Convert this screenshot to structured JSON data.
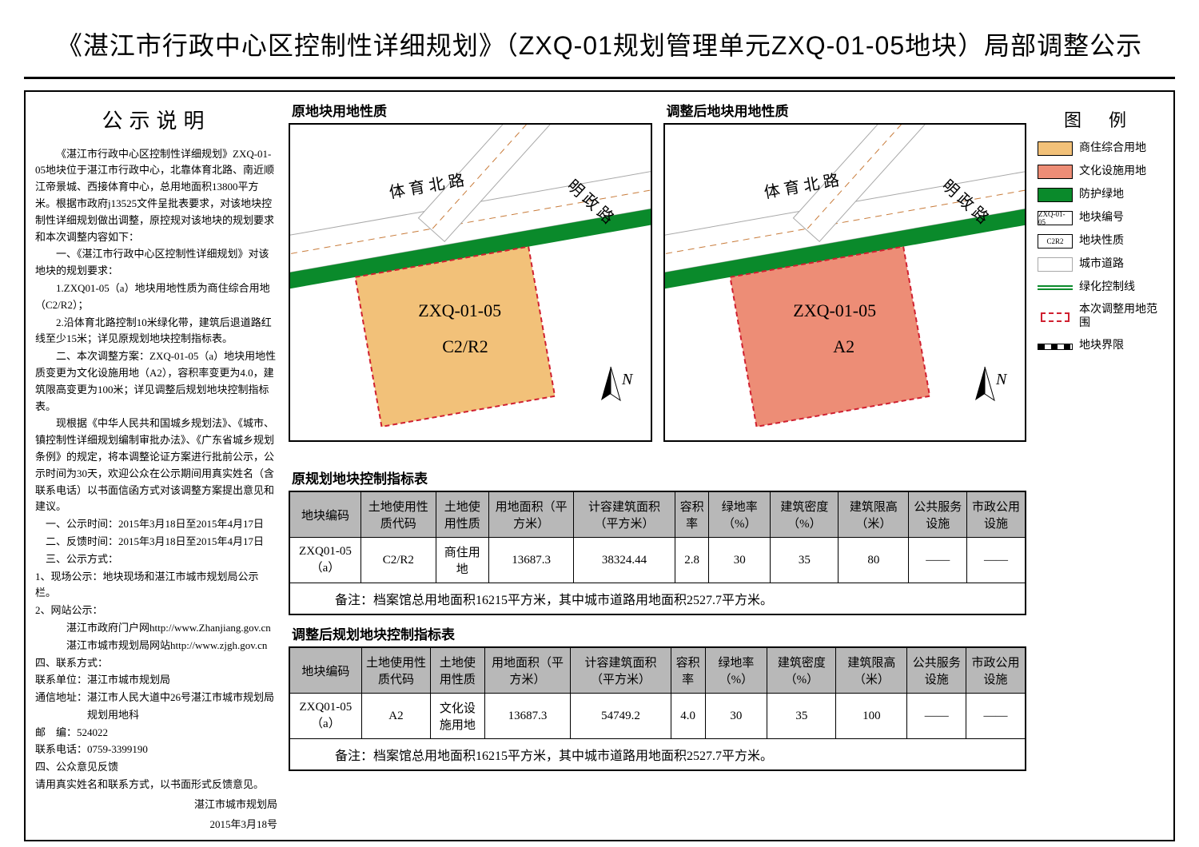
{
  "title": "《湛江市行政中心区控制性详细规划》（ZXQ-01规划管理单元ZXQ-01-05地块）局部调整公示",
  "notice": {
    "heading": "公示说明",
    "paragraphs": [
      "《湛江市行政中心区控制性详细规划》ZXQ-01-05地块位于湛江市行政中心，北靠体育北路、南近顺江帝景城、西接体育中心，总用地面积13800平方米。根据市政府j13525文件呈批表要求，对该地块控制性详细规划做出调整，原控规对该地块的规划要求和本次调整内容如下：",
      "一、《湛江市行政中心区控制性详细规划》对该地块的规划要求：",
      "1.ZXQ01-05（a）地块用地性质为商住综合用地（C2/R2）；",
      "2.沿体育北路控制10米绿化带，建筑后退道路红线至少15米；详见原规划地块控制指标表。",
      "二、本次调整方案：ZXQ-01-05（a）地块用地性质变更为文化设施用地（A2），容积率变更为4.0，建筑限高变更为100米；详见调整后规划地块控制指标表。",
      "现根据《中华人民共和国城乡规划法》、《城市、镇控制性详细规划编制审批办法》、《广东省城乡规划条例》的规定，将本调整论证方案进行批前公示，公示时间为30天，欢迎公众在公示期间用真实姓名（含联系电话）以书面信函方式对该调整方案提出意见和建议。"
    ],
    "items": [
      "一、公示时间：2015年3月18日至2015年4月17日",
      "二、反馈时间：2015年3月18日至2015年4月17日",
      "三、公示方式：",
      "1、现场公示：地块现场和湛江市城市规划局公示栏。",
      "2、网站公示：",
      "　　　湛江市政府门户网http://www.Zhanjiang.gov.cn",
      "　　　湛江市城市规划局网站http://www.zjgh.gov.cn",
      "四、联系方式：",
      "联系单位：湛江市城市规划局",
      "通信地址：湛江市人民大道中26号湛江市城市规划局",
      "　　　　　规划用地科",
      "邮　编：524022",
      "联系电话：0759-3399190",
      "四、公众意见反馈",
      "请用真实姓名和联系方式，以书面形式反馈意见。"
    ],
    "sign1": "湛江市城市规划局",
    "sign2": "2015年3月18号"
  },
  "maps": {
    "left_label": "原地块用地性质",
    "right_label": "调整后地块用地性质",
    "road1": "体 育 北 路",
    "road2": "明 政 路",
    "parcel_code": "ZXQ-01-05",
    "left_use": "C2/R2",
    "right_use": "A2",
    "north": "N",
    "colors": {
      "parcel_left": "#f2c179",
      "parcel_right": "#ed8d76",
      "green_strip": "#0a8a2b",
      "road_fill": "#ffffff",
      "road_edge": "#a8a8a8",
      "road_dash": "#c87b3a",
      "bound_dash": "#d02030"
    }
  },
  "table1": {
    "label": "原规划地块控制指标表",
    "headers": [
      "地块编码",
      "土地使用性质代码",
      "土地使用性质",
      "用地面积（平方米）",
      "计容建筑面积（平方米）",
      "容积率",
      "绿地率（%）",
      "建筑密度（%）",
      "建筑限高（米）",
      "公共服务设施",
      "市政公用设施"
    ],
    "row": [
      "ZXQ01-05（a）",
      "C2/R2",
      "商住用地",
      "13687.3",
      "38324.44",
      "2.8",
      "30",
      "35",
      "80",
      "——",
      "——"
    ],
    "note": "备注：档案馆总用地面积16215平方米，其中城市道路用地面积2527.7平方米。"
  },
  "table2": {
    "label": "调整后规划地块控制指标表",
    "headers": [
      "地块编码",
      "土地使用性质代码",
      "土地使用性质",
      "用地面积（平方米）",
      "计容建筑面积（平方米）",
      "容积率",
      "绿地率（%）",
      "建筑密度（%）",
      "建筑限高（米）",
      "公共服务设施",
      "市政公用设施"
    ],
    "row": [
      "ZXQ01-05（a）",
      "A2",
      "文化设施用地",
      "13687.3",
      "54749.2",
      "4.0",
      "30",
      "35",
      "100",
      "——",
      "——"
    ],
    "note": "备注：档案馆总用地面积16215平方米，其中城市道路用地面积2527.7平方米。"
  },
  "legend": {
    "title": "图 例",
    "items": [
      {
        "type": "swatch",
        "color": "#f2c179",
        "label": "商住综合用地"
      },
      {
        "type": "swatch",
        "color": "#ed8d76",
        "label": "文化设施用地"
      },
      {
        "type": "swatch",
        "color": "#0a8a2b",
        "label": "防护绿地"
      },
      {
        "type": "textbox",
        "text": "ZXQ-01-05",
        "label": "地块编号"
      },
      {
        "type": "textbox",
        "text": "C2R2",
        "label": "地块性质"
      },
      {
        "type": "road",
        "label": "城市道路"
      },
      {
        "type": "greenline",
        "label": "绿化控制线"
      },
      {
        "type": "redbox",
        "label": "本次调整用地范围"
      },
      {
        "type": "bwline",
        "label": "地块界限"
      }
    ]
  }
}
